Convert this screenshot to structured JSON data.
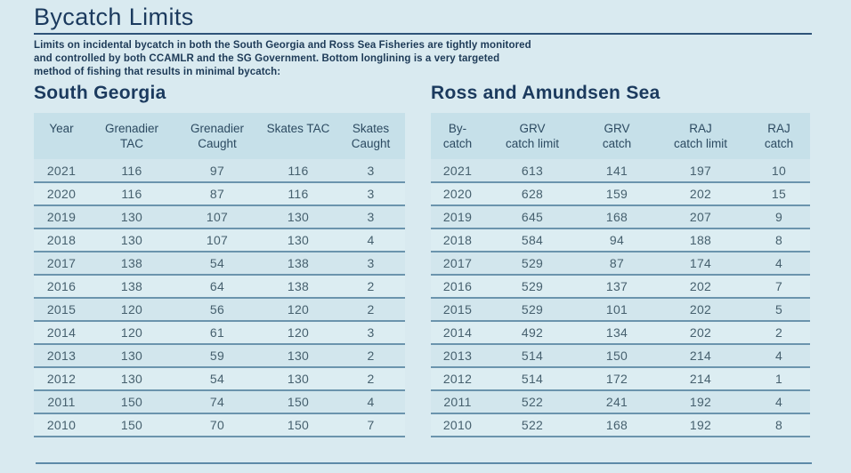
{
  "page": {
    "title": "Bycatch Limits",
    "intro_lines": [
      "Limits on incidental bycatch in both the South Georgia and Ross Sea Fisheries are tightly monitored",
      "and controlled by both CCAMLR and the SG Government. Bottom longlining is a very targeted",
      "method of fishing that results in minimal bycatch:"
    ]
  },
  "colors": {
    "page_background": "#d9eaf0",
    "table_header_background": "#c6e0e9",
    "heading_navy": "#1b3a5e",
    "cell_text": "#46606e",
    "row_divider": "#6b94ad"
  },
  "south_georgia": {
    "heading": "South Georgia",
    "columns": [
      {
        "label": "Year",
        "lines": [
          "Year"
        ]
      },
      {
        "label": "Grenadier TAC",
        "lines": [
          "Grenadier",
          "TAC"
        ]
      },
      {
        "label": "Grenadier Caught",
        "lines": [
          "Grenadier",
          "Caught"
        ]
      },
      {
        "label": "Skates TAC",
        "lines": [
          "Skates TAC"
        ]
      },
      {
        "label": "Skates Caught",
        "lines": [
          "Skates",
          "Caught"
        ]
      }
    ],
    "rows": [
      [
        "2021",
        "116",
        "97",
        "116",
        "3"
      ],
      [
        "2020",
        "116",
        "87",
        "116",
        "3"
      ],
      [
        "2019",
        "130",
        "107",
        "130",
        "3"
      ],
      [
        "2018",
        "130",
        "107",
        "130",
        "4"
      ],
      [
        "2017",
        "138",
        "54",
        "138",
        "3"
      ],
      [
        "2016",
        "138",
        "64",
        "138",
        "2"
      ],
      [
        "2015",
        "120",
        "56",
        "120",
        "2"
      ],
      [
        "2014",
        "120",
        "61",
        "120",
        "3"
      ],
      [
        "2013",
        "130",
        "59",
        "130",
        "2"
      ],
      [
        "2012",
        "130",
        "54",
        "130",
        "2"
      ],
      [
        "2011",
        "150",
        "74",
        "150",
        "4"
      ],
      [
        "2010",
        "150",
        "70",
        "150",
        "7"
      ]
    ]
  },
  "ross_amundsen": {
    "heading": "Ross and Amundsen Sea",
    "columns": [
      {
        "label": "By-catch",
        "lines": [
          "By-",
          "catch"
        ]
      },
      {
        "label": "GRV catch limit",
        "lines": [
          "GRV",
          "catch limit"
        ]
      },
      {
        "label": "GRV catch",
        "lines": [
          "GRV",
          "catch"
        ]
      },
      {
        "label": "RAJ catch limit",
        "lines": [
          "RAJ",
          "catch limit"
        ]
      },
      {
        "label": "RAJ catch",
        "lines": [
          "RAJ",
          "catch"
        ]
      }
    ],
    "rows": [
      [
        "2021",
        "613",
        "141",
        "197",
        "10"
      ],
      [
        "2020",
        "628",
        "159",
        "202",
        "15"
      ],
      [
        "2019",
        "645",
        "168",
        "207",
        "9"
      ],
      [
        "2018",
        "584",
        "94",
        "188",
        "8"
      ],
      [
        "2017",
        "529",
        "87",
        "174",
        "4"
      ],
      [
        "2016",
        "529",
        "137",
        "202",
        "7"
      ],
      [
        "2015",
        "529",
        "101",
        "202",
        "5"
      ],
      [
        "2014",
        "492",
        "134",
        "202",
        "2"
      ],
      [
        "2013",
        "514",
        "150",
        "214",
        "4"
      ],
      [
        "2012",
        "514",
        "172",
        "214",
        "1"
      ],
      [
        "2011",
        "522",
        "241",
        "192",
        "4"
      ],
      [
        "2010",
        "522",
        "168",
        "192",
        "8"
      ]
    ]
  }
}
